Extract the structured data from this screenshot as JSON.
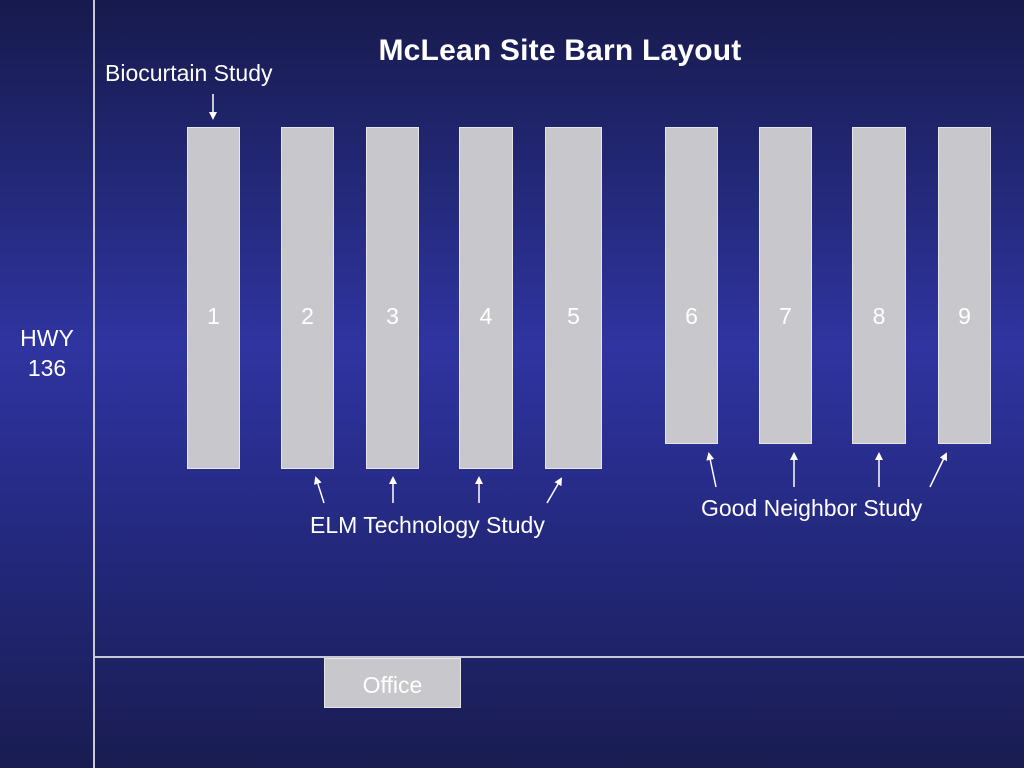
{
  "title": "McLean Site Barn Layout",
  "highway_label": [
    "HWY",
    "136"
  ],
  "barns": [
    {
      "number": "1"
    },
    {
      "number": "2"
    },
    {
      "number": "3"
    },
    {
      "number": "4"
    },
    {
      "number": "5"
    },
    {
      "number": "6"
    },
    {
      "number": "7"
    },
    {
      "number": "8"
    },
    {
      "number": "9"
    }
  ],
  "studies": {
    "biocurtain": "Biocurtain Study",
    "elm": "ELM Technology Study",
    "good_neighbor": "Good Neighbor Study"
  },
  "office": "Office",
  "colors": {
    "background_top": "#171a4c",
    "background_mid": "#2f34a0",
    "barn_fill": "#c8c8cc",
    "line": "#c9c9d6",
    "text": "#ffffff"
  }
}
